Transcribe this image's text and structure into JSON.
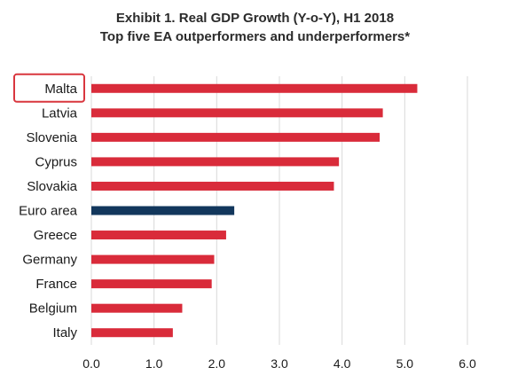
{
  "chart_data": {
    "type": "bar",
    "orientation": "horizontal",
    "title": "Exhibit 1. Real GDP Growth (Y-o-Y), H1 2018",
    "subtitle": "Top five EA outperformers and underperformers*",
    "categories": [
      "Malta",
      "Latvia",
      "Slovenia",
      "Cyprus",
      "Slovakia",
      "Euro area",
      "Greece",
      "Germany",
      "France",
      "Belgium",
      "Italy"
    ],
    "values": [
      5.2,
      4.65,
      4.6,
      3.95,
      3.87,
      2.28,
      2.15,
      1.96,
      1.92,
      1.45,
      1.3
    ],
    "highlighted_category": "Malta",
    "xlim": [
      0,
      6
    ],
    "xticks": [
      "0.0",
      "1.0",
      "2.0",
      "3.0",
      "4.0",
      "5.0",
      "6.0"
    ],
    "xlabel": "",
    "ylabel": "",
    "grid": "vertical",
    "legend": "none",
    "colors": {
      "default": "#d92b3a",
      "highlight": "#12375c",
      "highlight_box": "#d9363e",
      "grid": "#d9d9d9"
    },
    "highlight_color_category": "Euro area"
  }
}
